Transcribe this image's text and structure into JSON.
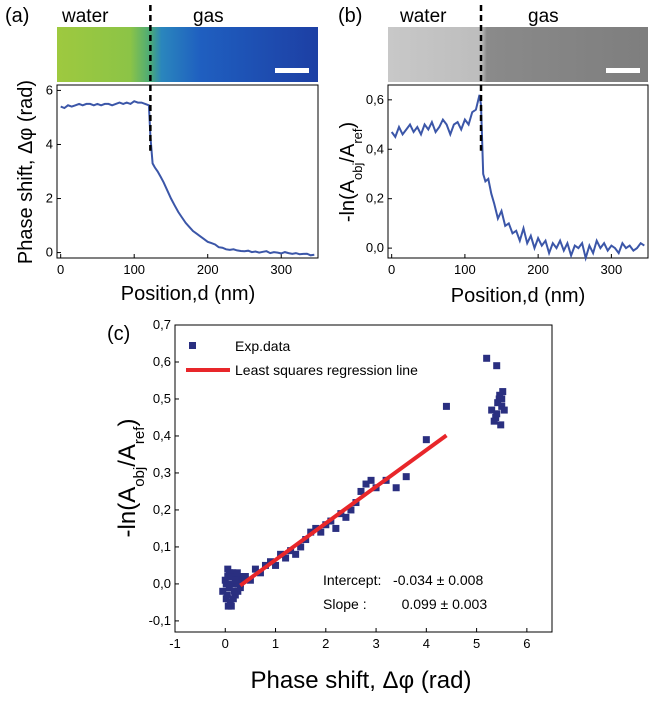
{
  "colors": {
    "line": "#3b56a8",
    "scatter": "#2a2f80",
    "regression": "#e8262a",
    "divider": "#000000"
  },
  "chart_data": [
    {
      "panel": "(a)",
      "type": "line",
      "region_labels": [
        "water",
        "gas"
      ],
      "xlabel": "Position,d  (nm)",
      "ylabel": "Phase shift, Δφ (rad)",
      "xlim": [
        -5,
        350
      ],
      "ylim": [
        -0.2,
        6.2
      ],
      "xticks": [
        0,
        100,
        200,
        300
      ],
      "yticks": [
        0,
        2,
        4,
        6
      ],
      "ytick_labels": [
        "0",
        "2",
        "4",
        "6"
      ],
      "boundary_x": 122,
      "series": [
        {
          "x": [
            0,
            5,
            10,
            15,
            20,
            25,
            30,
            35,
            40,
            45,
            50,
            55,
            60,
            65,
            70,
            75,
            80,
            85,
            90,
            95,
            100,
            105,
            110,
            115,
            120,
            122,
            125,
            128,
            132,
            136,
            140,
            145,
            150,
            155,
            160,
            165,
            170,
            175,
            180,
            185,
            190,
            195,
            200,
            205,
            210,
            215,
            220,
            225,
            230,
            235,
            240,
            245,
            250,
            255,
            260,
            265,
            270,
            275,
            280,
            285,
            290,
            295,
            300,
            305,
            310,
            315,
            320,
            325,
            330,
            335,
            340,
            345
          ],
          "y": [
            5.4,
            5.35,
            5.45,
            5.4,
            5.45,
            5.5,
            5.45,
            5.5,
            5.5,
            5.45,
            5.5,
            5.45,
            5.5,
            5.5,
            5.45,
            5.5,
            5.55,
            5.5,
            5.55,
            5.5,
            5.6,
            5.55,
            5.55,
            5.5,
            5.45,
            4.3,
            3.3,
            3.15,
            3.0,
            2.8,
            2.6,
            2.3,
            2.0,
            1.75,
            1.5,
            1.3,
            1.1,
            0.95,
            0.8,
            0.7,
            0.6,
            0.5,
            0.4,
            0.35,
            0.3,
            0.2,
            0.18,
            0.12,
            0.1,
            0.12,
            0.08,
            0.06,
            0.05,
            0.07,
            0.02,
            0.04,
            0.0,
            0.03,
            0.05,
            -0.02,
            0.02,
            0.0,
            -0.03,
            0.02,
            -0.02,
            -0.05,
            -0.02,
            -0.06,
            -0.05,
            -0.04,
            -0.1,
            -0.08
          ]
        }
      ]
    },
    {
      "panel": "(b)",
      "type": "line",
      "region_labels": [
        "water",
        "gas"
      ],
      "xlabel": "Position,d  (nm)",
      "ylabel": "-ln(A_obj/A_ref)",
      "xlim": [
        -5,
        350
      ],
      "ylim": [
        -0.04,
        0.66
      ],
      "xticks": [
        0,
        100,
        200,
        300
      ],
      "yticks": [
        0.0,
        0.2,
        0.4,
        0.6
      ],
      "ytick_labels": [
        "0,0",
        "0,2",
        "0,4",
        "0,6"
      ],
      "boundary_x": 122,
      "series": [
        {
          "x": [
            0,
            5,
            10,
            15,
            20,
            25,
            30,
            35,
            40,
            45,
            50,
            55,
            60,
            65,
            70,
            75,
            80,
            85,
            90,
            95,
            100,
            105,
            110,
            115,
            120,
            122,
            125,
            128,
            132,
            136,
            140,
            145,
            150,
            155,
            160,
            165,
            170,
            175,
            180,
            185,
            190,
            195,
            200,
            205,
            210,
            215,
            220,
            225,
            230,
            235,
            240,
            245,
            250,
            255,
            260,
            265,
            270,
            275,
            280,
            285,
            290,
            295,
            300,
            305,
            310,
            315,
            320,
            325,
            330,
            335,
            340,
            345
          ],
          "y": [
            0.47,
            0.45,
            0.49,
            0.46,
            0.48,
            0.5,
            0.47,
            0.49,
            0.46,
            0.5,
            0.48,
            0.51,
            0.47,
            0.49,
            0.52,
            0.5,
            0.46,
            0.5,
            0.51,
            0.48,
            0.52,
            0.5,
            0.55,
            0.56,
            0.62,
            0.58,
            0.3,
            0.27,
            0.28,
            0.22,
            0.18,
            0.12,
            0.15,
            0.09,
            0.1,
            0.06,
            0.07,
            0.03,
            0.08,
            0.02,
            0.05,
            0.0,
            0.04,
            0.01,
            0.03,
            -0.02,
            0.02,
            0.0,
            0.03,
            -0.01,
            0.02,
            -0.03,
            0.01,
            0.0,
            0.02,
            -0.04,
            0.01,
            -0.02,
            0.03,
            0.0,
            0.02,
            -0.01,
            0.01,
            0.0,
            -0.02,
            0.02,
            0.0,
            0.01,
            -0.01,
            0.0,
            0.02,
            0.01
          ]
        }
      ]
    },
    {
      "panel": "(c)",
      "type": "scatter",
      "xlabel": "Phase shift, Δφ (rad)",
      "ylabel": "-ln(A_obj/A_ref)",
      "xlim": [
        -1,
        6.5
      ],
      "ylim": [
        -0.13,
        0.7
      ],
      "xticks": [
        -1,
        0,
        1,
        2,
        3,
        4,
        5,
        6
      ],
      "xtick_labels": [
        "-1",
        "0",
        "1",
        "2",
        "3",
        "4",
        "5",
        "6"
      ],
      "yticks": [
        -0.1,
        0.0,
        0.1,
        0.2,
        0.3,
        0.4,
        0.5,
        0.6,
        0.7
      ],
      "ytick_labels": [
        "-0,1",
        "0,0",
        "0,1",
        "0,2",
        "0,3",
        "0,4",
        "0,5",
        "0,6",
        "0,7"
      ],
      "legend": [
        "Exp.data",
        "Least squares regression line"
      ],
      "annotations": [
        "Intercept:   -0.034 ± 0.008",
        "Slope :         0.099 ± 0.003"
      ],
      "regression": {
        "intercept": -0.034,
        "slope": 0.099,
        "x_range": [
          0.3,
          4.4
        ]
      },
      "series": [
        {
          "name": "Exp.data",
          "points": [
            [
              -0.05,
              -0.02
            ],
            [
              0.0,
              0.01
            ],
            [
              0.02,
              -0.04
            ],
            [
              0.05,
              0.02
            ],
            [
              0.08,
              -0.01
            ],
            [
              0.1,
              0.03
            ],
            [
              0.12,
              -0.06
            ],
            [
              0.15,
              0.0
            ],
            [
              0.18,
              0.02
            ],
            [
              0.2,
              -0.03
            ],
            [
              0.05,
              0.04
            ],
            [
              0.1,
              -0.05
            ],
            [
              0.15,
              0.03
            ],
            [
              0.22,
              0.01
            ],
            [
              0.25,
              -0.02
            ],
            [
              0.28,
              0.02
            ],
            [
              0.3,
              0.0
            ],
            [
              0.02,
              0.0
            ],
            [
              0.08,
              0.03
            ],
            [
              0.12,
              0.02
            ],
            [
              0.18,
              -0.02
            ],
            [
              0.24,
              0.03
            ],
            [
              0.3,
              -0.01
            ],
            [
              0.35,
              0.01
            ],
            [
              0.06,
              -0.06
            ],
            [
              0.16,
              -0.04
            ],
            [
              0.26,
              0.0
            ],
            [
              0.1,
              0.0
            ],
            [
              0.2,
              0.01
            ],
            [
              0.04,
              -0.03
            ],
            [
              0.4,
              0.02
            ],
            [
              0.5,
              0.01
            ],
            [
              0.6,
              0.04
            ],
            [
              0.7,
              0.03
            ],
            [
              0.8,
              0.05
            ],
            [
              0.9,
              0.06
            ],
            [
              1.0,
              0.05
            ],
            [
              1.1,
              0.08
            ],
            [
              1.2,
              0.07
            ],
            [
              1.3,
              0.09
            ],
            [
              1.4,
              0.08
            ],
            [
              1.5,
              0.1
            ],
            [
              1.6,
              0.12
            ],
            [
              1.7,
              0.14
            ],
            [
              1.8,
              0.15
            ],
            [
              1.9,
              0.14
            ],
            [
              2.0,
              0.16
            ],
            [
              2.1,
              0.17
            ],
            [
              2.2,
              0.15
            ],
            [
              2.3,
              0.19
            ],
            [
              2.4,
              0.18
            ],
            [
              2.5,
              0.2
            ],
            [
              2.6,
              0.22
            ],
            [
              2.7,
              0.25
            ],
            [
              2.8,
              0.27
            ],
            [
              2.9,
              0.28
            ],
            [
              3.0,
              0.26
            ],
            [
              3.2,
              0.28
            ],
            [
              3.4,
              0.26
            ],
            [
              3.6,
              0.29
            ],
            [
              4.0,
              0.39
            ],
            [
              4.4,
              0.48
            ],
            [
              5.2,
              0.61
            ],
            [
              5.4,
              0.59
            ],
            [
              5.3,
              0.47
            ],
            [
              5.35,
              0.44
            ],
            [
              5.4,
              0.46
            ],
            [
              5.45,
              0.5
            ],
            [
              5.5,
              0.48
            ],
            [
              5.52,
              0.52
            ],
            [
              5.48,
              0.43
            ],
            [
              5.42,
              0.49
            ],
            [
              5.38,
              0.45
            ],
            [
              5.5,
              0.5
            ],
            [
              5.55,
              0.47
            ],
            [
              5.46,
              0.51
            ]
          ]
        }
      ]
    }
  ]
}
